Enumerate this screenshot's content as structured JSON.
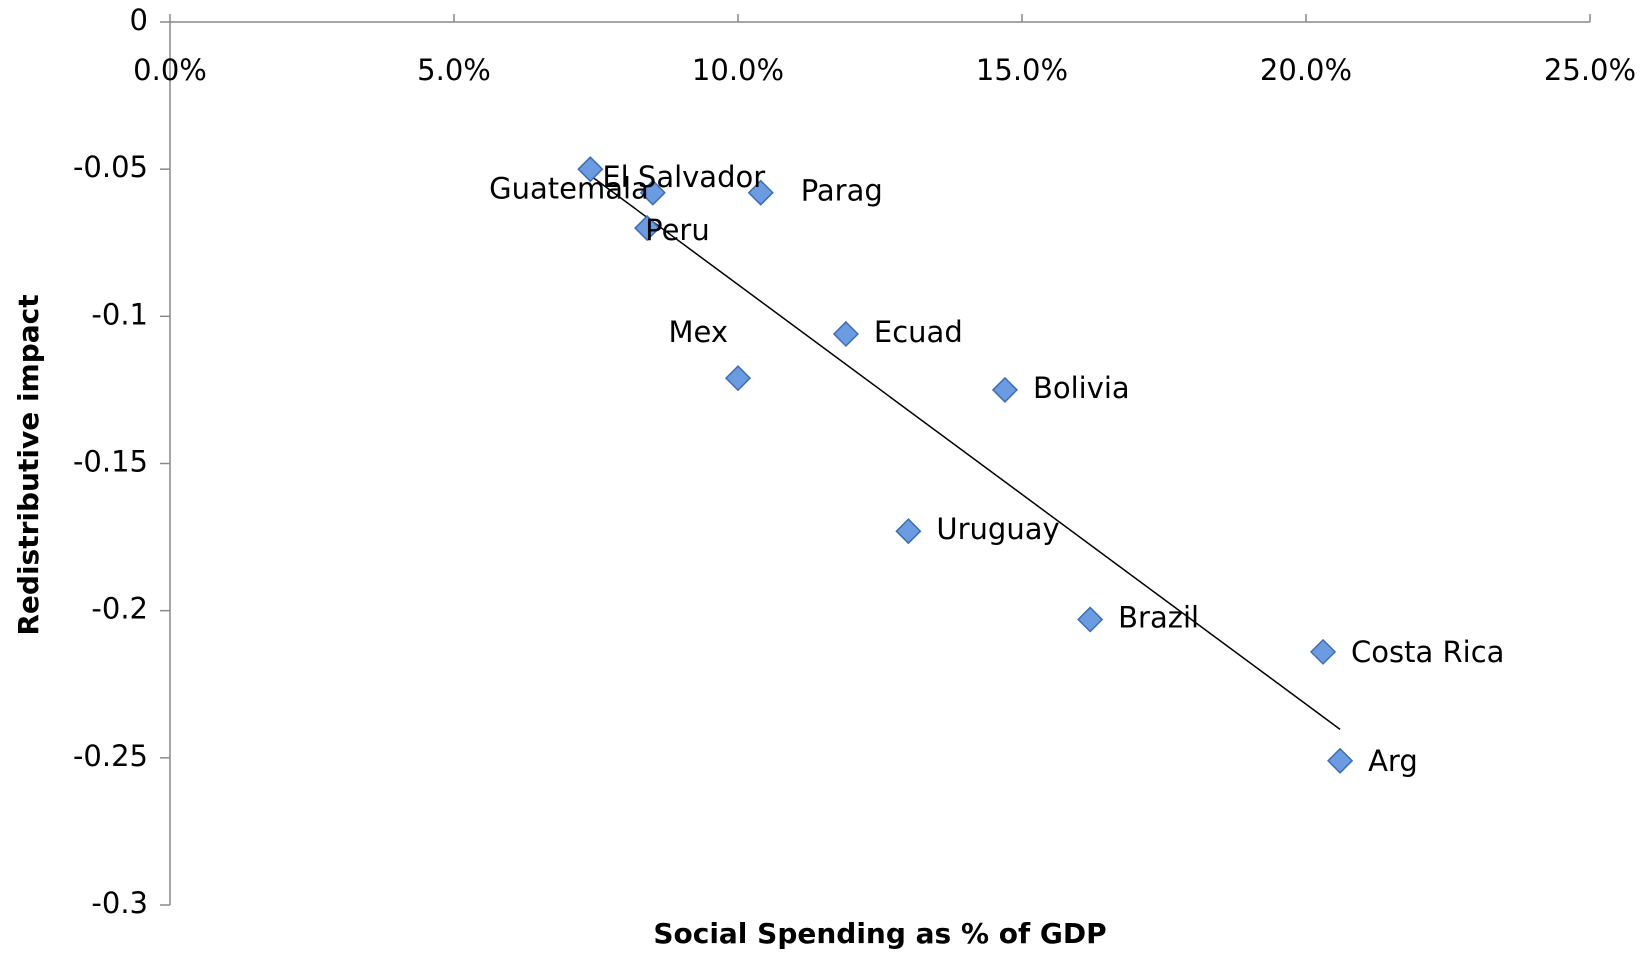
{
  "chart_data": {
    "type": "scatter",
    "x_label": "Social Spending as % of GDP",
    "y_label": "Redistributive impact",
    "point_labels": [
      "El Salvador",
      "Guatemala",
      "Parag",
      "Peru",
      "Mex",
      "Ecuad",
      "Bolivia",
      "Uruguay",
      "Brazil",
      "Costa Rica",
      "Arg"
    ],
    "x": [
      7.4,
      8.5,
      10.4,
      8.4,
      10.0,
      11.9,
      14.7,
      13.0,
      16.2,
      20.3,
      20.6
    ],
    "values": [
      -0.05,
      -0.058,
      -0.058,
      -0.07,
      -0.121,
      -0.106,
      -0.125,
      -0.173,
      -0.203,
      -0.214,
      -0.251
    ],
    "color": "#6b9be0",
    "trendline": true,
    "xlim": [
      0,
      25
    ],
    "xticks": [
      {
        "value": 0,
        "label": "0.0%"
      },
      {
        "value": 5,
        "label": "5.0%"
      },
      {
        "value": 10,
        "label": "10.0%"
      },
      {
        "value": 15,
        "label": "15.0%"
      },
      {
        "value": 20,
        "label": "20.0%"
      },
      {
        "value": 25,
        "label": "25.0%"
      }
    ],
    "ylim": [
      -0.3,
      0
    ],
    "yticks": [
      0,
      -0.05,
      -0.1,
      -0.15,
      -0.2,
      -0.25,
      -0.3
    ]
  }
}
